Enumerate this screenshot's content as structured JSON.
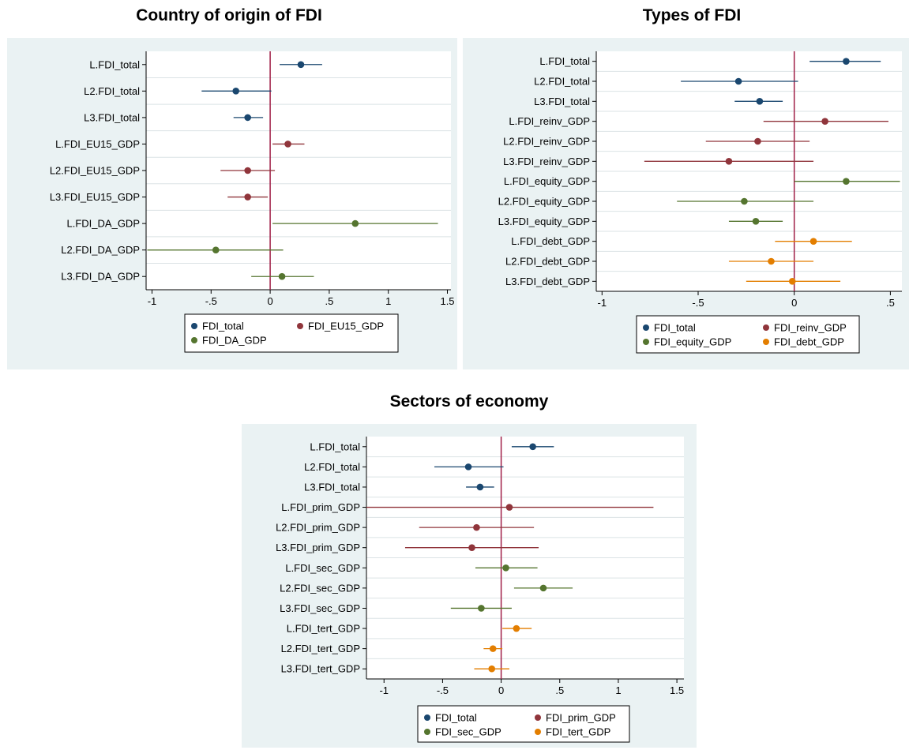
{
  "colors": {
    "panel_bg": "#eaf2f3",
    "plot_bg": "#ffffff",
    "grid": "#dbe3e5",
    "zero_line": "#a01e47",
    "FDI_total": "#1a476f",
    "group2": "#90353b",
    "group3": "#55752f",
    "group4": "#e37e00"
  },
  "chart_data": [
    {
      "type": "scatter",
      "subtype": "coefficient-plot",
      "title": "Country of origin of FDI",
      "xlabel": "",
      "ylabel": "",
      "xlim": [
        -1.05,
        1.53
      ],
      "xticks": [
        -1,
        -0.5,
        0,
        0.5,
        1,
        1.5
      ],
      "xtick_labels": [
        "-1",
        "-.5",
        "0",
        ".5",
        "1",
        "1.5"
      ],
      "reference_line_x": 0,
      "grid": true,
      "legend_position": "bottom",
      "legend_columns": 2,
      "legend": [
        {
          "name": "FDI_total",
          "color": "#1a476f"
        },
        {
          "name": "FDI_EU15_GDP",
          "color": "#90353b"
        },
        {
          "name": "FDI_DA_GDP",
          "color": "#55752f"
        }
      ],
      "rows": [
        {
          "label": "L.FDI_total",
          "series": "FDI_total",
          "color": "#1a476f",
          "estimate": 0.26,
          "ci": [
            0.08,
            0.44
          ]
        },
        {
          "label": "L2.FDI_total",
          "series": "FDI_total",
          "color": "#1a476f",
          "estimate": -0.29,
          "ci": [
            -0.58,
            0.01
          ]
        },
        {
          "label": "L3.FDI_total",
          "series": "FDI_total",
          "color": "#1a476f",
          "estimate": -0.19,
          "ci": [
            -0.31,
            -0.06
          ]
        },
        {
          "label": "L.FDI_EU15_GDP",
          "series": "FDI_EU15_GDP",
          "color": "#90353b",
          "estimate": 0.15,
          "ci": [
            0.02,
            0.29
          ]
        },
        {
          "label": "L2.FDI_EU15_GDP",
          "series": "FDI_EU15_GDP",
          "color": "#90353b",
          "estimate": -0.19,
          "ci": [
            -0.42,
            0.04
          ]
        },
        {
          "label": "L3.FDI_EU15_GDP",
          "series": "FDI_EU15_GDP",
          "color": "#90353b",
          "estimate": -0.19,
          "ci": [
            -0.36,
            -0.02
          ]
        },
        {
          "label": "L.FDI_DA_GDP",
          "series": "FDI_DA_GDP",
          "color": "#55752f",
          "estimate": 0.72,
          "ci": [
            0.02,
            1.42
          ]
        },
        {
          "label": "L2.FDI_DA_GDP",
          "series": "FDI_DA_GDP",
          "color": "#55752f",
          "estimate": -0.46,
          "ci": [
            -1.04,
            0.11
          ]
        },
        {
          "label": "L3.FDI_DA_GDP",
          "series": "FDI_DA_GDP",
          "color": "#55752f",
          "estimate": 0.1,
          "ci": [
            -0.16,
            0.37
          ]
        }
      ]
    },
    {
      "type": "scatter",
      "subtype": "coefficient-plot",
      "title": "Types of FDI",
      "xlabel": "",
      "ylabel": "",
      "xlim": [
        -1.03,
        0.56
      ],
      "xticks": [
        -1,
        -0.5,
        0,
        0.5
      ],
      "xtick_labels": [
        "-1",
        "-.5",
        "0",
        ".5"
      ],
      "reference_line_x": 0,
      "grid": true,
      "legend_position": "bottom",
      "legend_columns": 2,
      "legend": [
        {
          "name": "FDI_total",
          "color": "#1a476f"
        },
        {
          "name": "FDI_reinv_GDP",
          "color": "#90353b"
        },
        {
          "name": "FDI_equity_GDP",
          "color": "#55752f"
        },
        {
          "name": "FDI_debt_GDP",
          "color": "#e37e00"
        }
      ],
      "rows": [
        {
          "label": "L.FDI_total",
          "series": "FDI_total",
          "color": "#1a476f",
          "estimate": 0.27,
          "ci": [
            0.08,
            0.45
          ]
        },
        {
          "label": "L2.FDI_total",
          "series": "FDI_total",
          "color": "#1a476f",
          "estimate": -0.29,
          "ci": [
            -0.59,
            0.02
          ]
        },
        {
          "label": "L3.FDI_total",
          "series": "FDI_total",
          "color": "#1a476f",
          "estimate": -0.18,
          "ci": [
            -0.31,
            -0.06
          ]
        },
        {
          "label": "L.FDI_reinv_GDP",
          "series": "FDI_reinv_GDP",
          "color": "#90353b",
          "estimate": 0.16,
          "ci": [
            -0.16,
            0.49
          ]
        },
        {
          "label": "L2.FDI_reinv_GDP",
          "series": "FDI_reinv_GDP",
          "color": "#90353b",
          "estimate": -0.19,
          "ci": [
            -0.46,
            0.08
          ]
        },
        {
          "label": "L3.FDI_reinv_GDP",
          "series": "FDI_reinv_GDP",
          "color": "#90353b",
          "estimate": -0.34,
          "ci": [
            -0.78,
            0.1
          ]
        },
        {
          "label": "L.FDI_equity_GDP",
          "series": "FDI_equity_GDP",
          "color": "#55752f",
          "estimate": 0.27,
          "ci": [
            0.0,
            0.55
          ]
        },
        {
          "label": "L2.FDI_equity_GDP",
          "series": "FDI_equity_GDP",
          "color": "#55752f",
          "estimate": -0.26,
          "ci": [
            -0.61,
            0.1
          ]
        },
        {
          "label": "L3.FDI_equity_GDP",
          "series": "FDI_equity_GDP",
          "color": "#55752f",
          "estimate": -0.2,
          "ci": [
            -0.34,
            -0.06
          ]
        },
        {
          "label": "L.FDI_debt_GDP",
          "series": "FDI_debt_GDP",
          "color": "#e37e00",
          "estimate": 0.1,
          "ci": [
            -0.1,
            0.3
          ]
        },
        {
          "label": "L2.FDI_debt_GDP",
          "series": "FDI_debt_GDP",
          "color": "#e37e00",
          "estimate": -0.12,
          "ci": [
            -0.34,
            0.1
          ]
        },
        {
          "label": "L3.FDI_debt_GDP",
          "series": "FDI_debt_GDP",
          "color": "#e37e00",
          "estimate": -0.01,
          "ci": [
            -0.25,
            0.24
          ]
        }
      ]
    },
    {
      "type": "scatter",
      "subtype": "coefficient-plot",
      "title": "Sectors of economy",
      "xlabel": "",
      "ylabel": "",
      "xlim": [
        -1.15,
        1.56
      ],
      "xticks": [
        -1,
        -0.5,
        0,
        0.5,
        1,
        1.5
      ],
      "xtick_labels": [
        "-1",
        "-.5",
        "0",
        ".5",
        "1",
        "1.5"
      ],
      "reference_line_x": 0,
      "grid": true,
      "legend_position": "bottom",
      "legend_columns": 2,
      "legend": [
        {
          "name": "FDI_total",
          "color": "#1a476f"
        },
        {
          "name": "FDI_prim_GDP",
          "color": "#90353b"
        },
        {
          "name": "FDI_sec_GDP",
          "color": "#55752f"
        },
        {
          "name": "FDI_tert_GDP",
          "color": "#e37e00"
        }
      ],
      "rows": [
        {
          "label": "L.FDI_total",
          "series": "FDI_total",
          "color": "#1a476f",
          "estimate": 0.27,
          "ci": [
            0.09,
            0.45
          ]
        },
        {
          "label": "L2.FDI_total",
          "series": "FDI_total",
          "color": "#1a476f",
          "estimate": -0.28,
          "ci": [
            -0.57,
            0.02
          ]
        },
        {
          "label": "L3.FDI_total",
          "series": "FDI_total",
          "color": "#1a476f",
          "estimate": -0.18,
          "ci": [
            -0.3,
            -0.06
          ]
        },
        {
          "label": "L.FDI_prim_GDP",
          "series": "FDI_prim_GDP",
          "color": "#90353b",
          "estimate": 0.07,
          "ci": [
            -1.15,
            1.3
          ]
        },
        {
          "label": "L2.FDI_prim_GDP",
          "series": "FDI_prim_GDP",
          "color": "#90353b",
          "estimate": -0.21,
          "ci": [
            -0.7,
            0.28
          ]
        },
        {
          "label": "L3.FDI_prim_GDP",
          "series": "FDI_prim_GDP",
          "color": "#90353b",
          "estimate": -0.25,
          "ci": [
            -0.82,
            0.32
          ]
        },
        {
          "label": "L.FDI_sec_GDP",
          "series": "FDI_sec_GDP",
          "color": "#55752f",
          "estimate": 0.04,
          "ci": [
            -0.22,
            0.31
          ]
        },
        {
          "label": "L2.FDI_sec_GDP",
          "series": "FDI_sec_GDP",
          "color": "#55752f",
          "estimate": 0.36,
          "ci": [
            0.11,
            0.61
          ]
        },
        {
          "label": "L3.FDI_sec_GDP",
          "series": "FDI_sec_GDP",
          "color": "#55752f",
          "estimate": -0.17,
          "ci": [
            -0.43,
            0.09
          ]
        },
        {
          "label": "L.FDI_tert_GDP",
          "series": "FDI_tert_GDP",
          "color": "#e37e00",
          "estimate": 0.13,
          "ci": [
            0.01,
            0.26
          ]
        },
        {
          "label": "L2.FDI_tert_GDP",
          "series": "FDI_tert_GDP",
          "color": "#e37e00",
          "estimate": -0.07,
          "ci": [
            -0.15,
            0.01
          ]
        },
        {
          "label": "L3.FDI_tert_GDP",
          "series": "FDI_tert_GDP",
          "color": "#e37e00",
          "estimate": -0.08,
          "ci": [
            -0.23,
            0.07
          ]
        }
      ]
    }
  ]
}
